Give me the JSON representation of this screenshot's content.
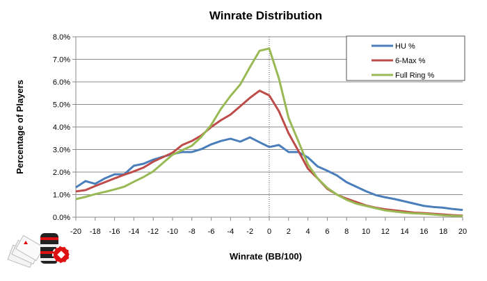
{
  "chart_data": {
    "type": "line",
    "title": "Winrate Distribution",
    "xlabel": "Winrate (BB/100)",
    "ylabel": "Percentage of Players",
    "xlim": [
      -20,
      20
    ],
    "ylim": [
      0,
      8
    ],
    "grid": true,
    "legend_position": "top-right",
    "x_ticks": [
      -20,
      -18,
      -16,
      -14,
      -12,
      -10,
      -8,
      -6,
      -4,
      -2,
      0,
      2,
      4,
      6,
      8,
      10,
      12,
      14,
      16,
      18,
      20
    ],
    "y_ticks": [
      "0.0%",
      "1.0%",
      "2.0%",
      "3.0%",
      "4.0%",
      "5.0%",
      "6.0%",
      "7.0%",
      "8.0%"
    ],
    "x": [
      -20,
      -19,
      -18,
      -17,
      -16,
      -15,
      -14,
      -13,
      -12,
      -11,
      -10,
      -9,
      -8,
      -7,
      -6,
      -5,
      -4,
      -3,
      -2,
      -1,
      0,
      1,
      2,
      3,
      4,
      5,
      6,
      7,
      8,
      9,
      10,
      11,
      12,
      13,
      14,
      15,
      16,
      17,
      18,
      19,
      20
    ],
    "series": [
      {
        "name": "HU %",
        "color": "#4a7ebb",
        "values": [
          1.32,
          1.6,
          1.48,
          1.72,
          1.9,
          1.9,
          2.28,
          2.37,
          2.55,
          2.68,
          2.8,
          2.89,
          2.89,
          3.02,
          3.23,
          3.38,
          3.48,
          3.35,
          3.54,
          3.32,
          3.11,
          3.2,
          2.89,
          2.89,
          2.65,
          2.25,
          2.06,
          1.85,
          1.55,
          1.35,
          1.15,
          0.98,
          0.88,
          0.8,
          0.7,
          0.6,
          0.5,
          0.45,
          0.42,
          0.36,
          0.32
        ]
      },
      {
        "name": "6-Max %",
        "color": "#be4b48",
        "values": [
          1.14,
          1.2,
          1.38,
          1.55,
          1.72,
          1.88,
          2.03,
          2.2,
          2.46,
          2.66,
          2.86,
          3.2,
          3.38,
          3.63,
          4.0,
          4.3,
          4.55,
          4.92,
          5.29,
          5.61,
          5.4,
          4.7,
          3.72,
          2.95,
          2.15,
          1.72,
          1.26,
          1.0,
          0.82,
          0.67,
          0.52,
          0.42,
          0.35,
          0.3,
          0.25,
          0.2,
          0.18,
          0.15,
          0.12,
          0.09,
          0.07
        ]
      },
      {
        "name": "Full Ring %",
        "color": "#98b954",
        "values": [
          0.8,
          0.9,
          1.02,
          1.12,
          1.23,
          1.35,
          1.57,
          1.78,
          2.03,
          2.4,
          2.77,
          2.97,
          3.17,
          3.57,
          4.09,
          4.8,
          5.38,
          5.88,
          6.65,
          7.38,
          7.48,
          6.15,
          4.4,
          3.38,
          2.34,
          1.72,
          1.3,
          1.0,
          0.77,
          0.6,
          0.5,
          0.4,
          0.3,
          0.25,
          0.2,
          0.17,
          0.15,
          0.12,
          0.08,
          0.06,
          0.05
        ]
      }
    ]
  }
}
